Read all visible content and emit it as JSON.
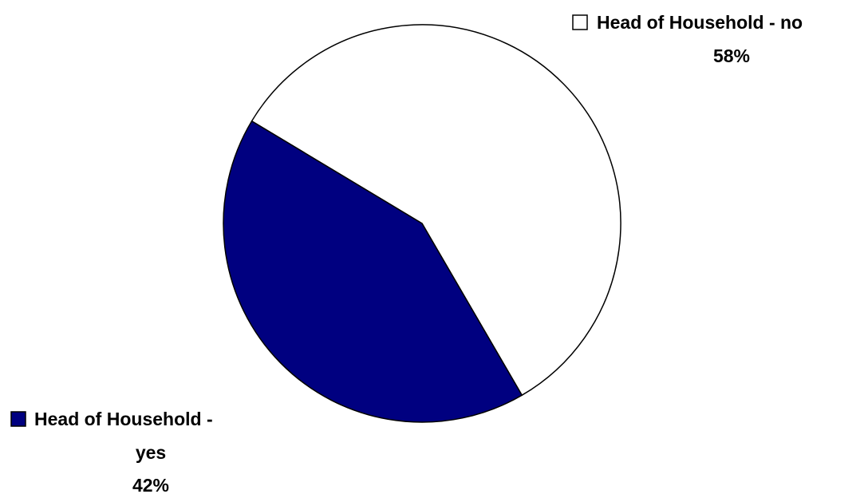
{
  "chart_data": {
    "type": "pie",
    "slices": [
      {
        "label_lines": [
          "Head of Household - no"
        ],
        "value": 58,
        "value_label": "58%",
        "color": "#ffffff"
      },
      {
        "label_lines": [
          "Head of Household -",
          "yes"
        ],
        "value": 42,
        "value_label": "42%",
        "color": "#000080"
      }
    ],
    "outline_color": "#000000"
  }
}
